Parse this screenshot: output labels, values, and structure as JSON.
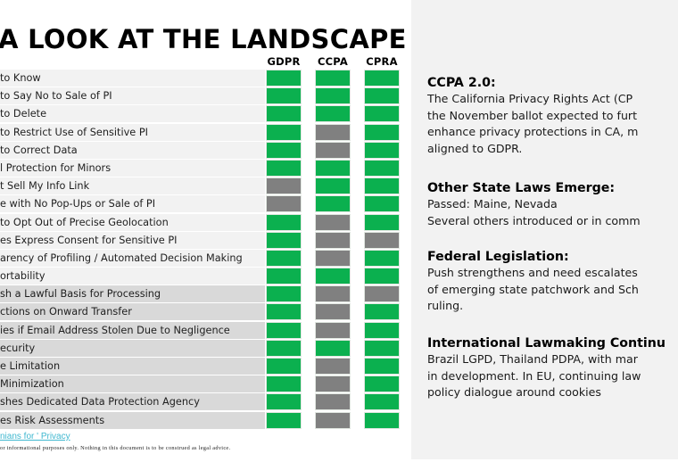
{
  "title": "A LOOK AT THE LANDSCAPE",
  "columns": [
    "GDPR",
    "CCPA",
    "CPRA"
  ],
  "colors": {
    "yes": "#0bb04f",
    "no": "#808080",
    "row_light": "#f2f2f2",
    "row_dark": "#d9d9d9"
  },
  "rows": [
    {
      "label": "to Know",
      "values": [
        true,
        true,
        true
      ],
      "shade": "light"
    },
    {
      "label": "to Say No to Sale of PI",
      "values": [
        true,
        true,
        true
      ],
      "shade": "light"
    },
    {
      "label": "to Delete",
      "values": [
        true,
        true,
        true
      ],
      "shade": "light"
    },
    {
      "label": "to Restrict Use of Sensitive PI",
      "values": [
        true,
        false,
        true
      ],
      "shade": "light"
    },
    {
      "label": "to Correct Data",
      "values": [
        true,
        false,
        true
      ],
      "shade": "light"
    },
    {
      "label": "l Protection for Minors",
      "values": [
        true,
        true,
        true
      ],
      "shade": "light"
    },
    {
      "label": "t Sell My Info Link",
      "values": [
        false,
        true,
        true
      ],
      "shade": "light"
    },
    {
      "label": "e with No Pop-Ups or Sale of PI",
      "values": [
        false,
        true,
        true
      ],
      "shade": "light"
    },
    {
      "label": "to Opt Out of Precise Geolocation",
      "values": [
        true,
        false,
        true
      ],
      "shade": "light"
    },
    {
      "label": "es Express Consent for Sensitive PI",
      "values": [
        true,
        false,
        false
      ],
      "shade": "light"
    },
    {
      "label": "arency of Profiling / Automated Decision Making",
      "values": [
        true,
        false,
        true
      ],
      "shade": "light"
    },
    {
      "label": "ortability",
      "values": [
        true,
        true,
        true
      ],
      "shade": "light"
    },
    {
      "label": "sh a Lawful Basis for Processing",
      "values": [
        true,
        false,
        false
      ],
      "shade": "dark"
    },
    {
      "label": "ctions on Onward Transfer",
      "values": [
        true,
        false,
        true
      ],
      "shade": "dark"
    },
    {
      "label": "ies if Email Address Stolen Due to Negligence",
      "values": [
        true,
        false,
        true
      ],
      "shade": "dark"
    },
    {
      "label": "ecurity",
      "values": [
        true,
        true,
        true
      ],
      "shade": "dark"
    },
    {
      "label": "e Limitation",
      "values": [
        true,
        false,
        true
      ],
      "shade": "dark"
    },
    {
      "label": "Minimization",
      "values": [
        true,
        false,
        true
      ],
      "shade": "dark"
    },
    {
      "label": "shes Dedicated Data Protection Agency",
      "values": [
        true,
        false,
        true
      ],
      "shade": "dark"
    },
    {
      "label": "es Risk Assessments",
      "values": [
        true,
        false,
        true
      ],
      "shade": "dark"
    }
  ],
  "footer": {
    "link": "nians for ' Privacy",
    "disclaimer": "or informational purposes only. Nothing in this document is to be construed as legal advice."
  },
  "panel": {
    "sections": [
      {
        "heading": "CCPA 2.0:",
        "lines": [
          "The California Privacy Rights Act (CP",
          "the November ballot expected to furt",
          "enhance privacy protections in CA, m",
          "aligned to GDPR."
        ]
      },
      {
        "heading": "Other State Laws Emerge:",
        "lines": [
          "Passed: Maine, Nevada",
          "Several others introduced or in comm"
        ]
      },
      {
        "heading": "Federal Legislation:",
        "lines": [
          "Push strengthens and need escalates",
          "of emerging state patchwork and Sch",
          "ruling."
        ]
      },
      {
        "heading": "International Lawmaking Continu",
        "lines": [
          "Brazil LGPD, Thailand PDPA, with mar",
          "in development. In EU, continuing law",
          "policy dialogue around cookies"
        ]
      }
    ]
  }
}
